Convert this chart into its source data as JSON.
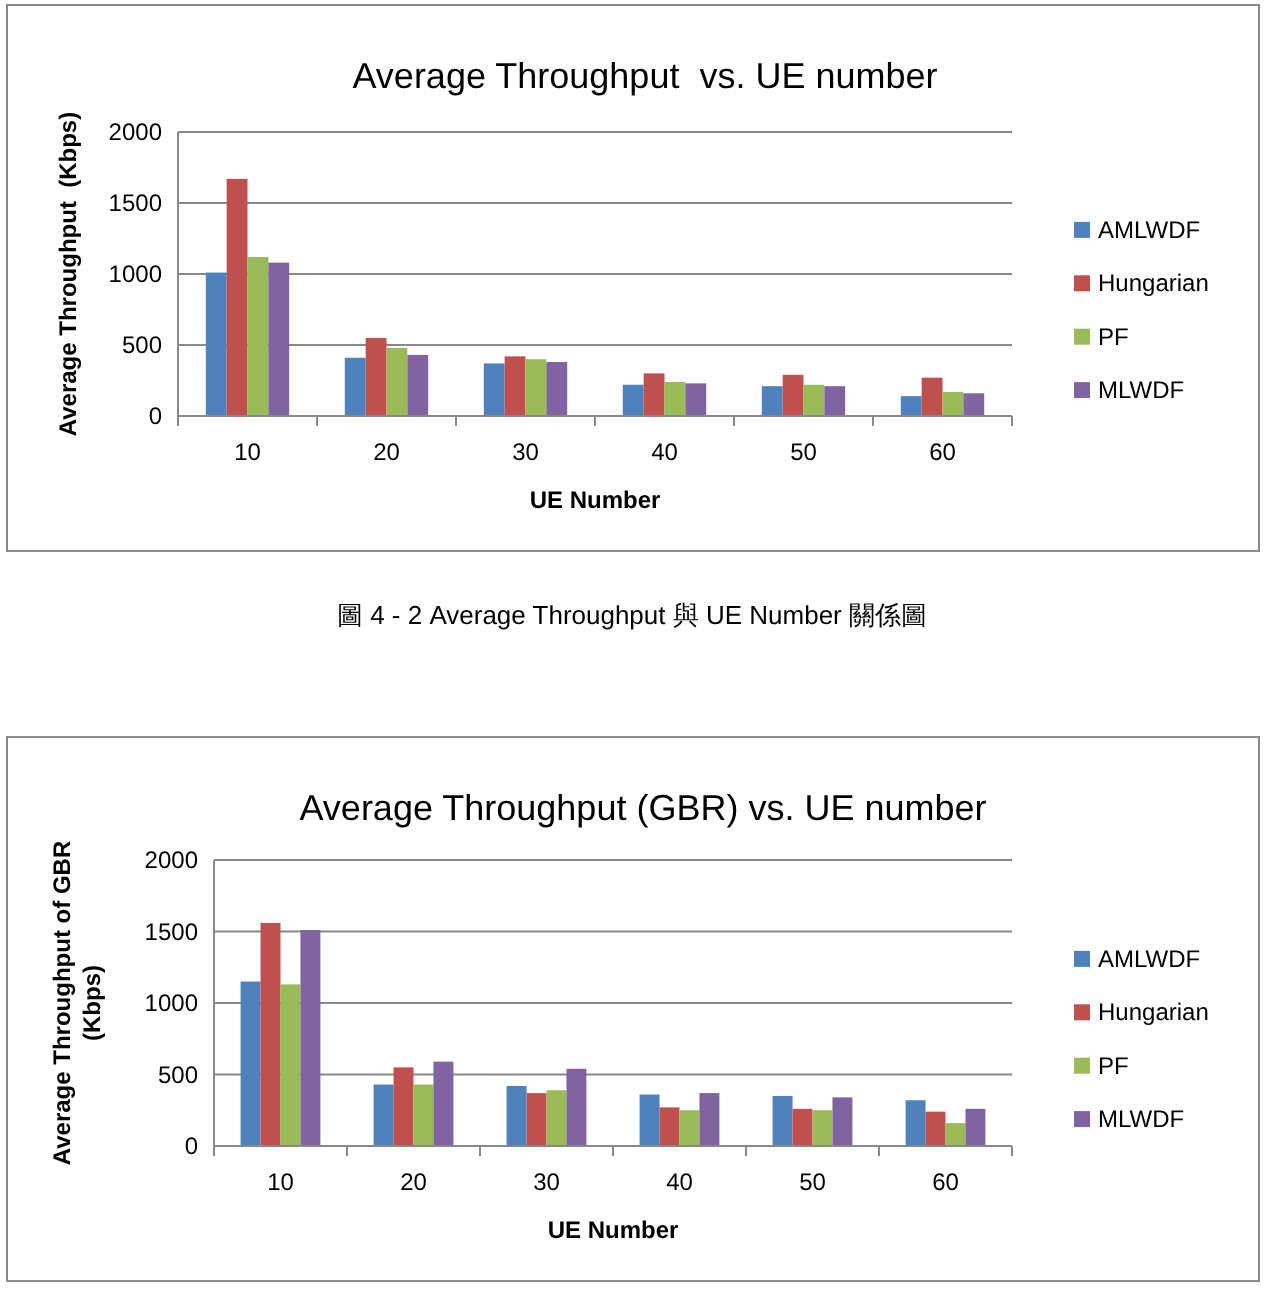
{
  "chart_data": [
    {
      "type": "bar",
      "title": "Average Throughput  vs. UE number",
      "xlabel": "UE Number",
      "ylabel": "Average Throughput  (Kbps)",
      "categories": [
        "10",
        "20",
        "30",
        "40",
        "50",
        "60"
      ],
      "series": [
        {
          "name": "AMLWDF",
          "color": "#4f81bd",
          "values": [
            1010,
            410,
            370,
            220,
            210,
            140
          ]
        },
        {
          "name": "Hungarian",
          "color": "#c0504d",
          "values": [
            1670,
            550,
            420,
            300,
            290,
            270
          ]
        },
        {
          "name": "PF",
          "color": "#9bbb59",
          "values": [
            1120,
            480,
            400,
            240,
            220,
            170
          ]
        },
        {
          "name": "MLWDF",
          "color": "#8064a2",
          "values": [
            1080,
            430,
            380,
            230,
            210,
            160
          ]
        }
      ],
      "ylim": [
        0,
        2000
      ],
      "yticks": [
        0,
        500,
        1000,
        1500,
        2000
      ],
      "grid": "y",
      "legend": "right",
      "annotations": [
        "圖 4 - 2 Average Throughput 與 UE Number 關係圖"
      ]
    },
    {
      "type": "bar",
      "title": "Average Throughput (GBR) vs. UE number",
      "xlabel": "UE Number",
      "ylabel": "Average Throughput of GBR (Kbps)",
      "categories": [
        "10",
        "20",
        "30",
        "40",
        "50",
        "60"
      ],
      "series": [
        {
          "name": "AMLWDF",
          "color": "#4f81bd",
          "values": [
            1150,
            430,
            420,
            360,
            350,
            320
          ]
        },
        {
          "name": "Hungarian",
          "color": "#c0504d",
          "values": [
            1560,
            550,
            370,
            270,
            260,
            240
          ]
        },
        {
          "name": "PF",
          "color": "#9bbb59",
          "values": [
            1130,
            430,
            390,
            250,
            250,
            160
          ]
        },
        {
          "name": "MLWDF",
          "color": "#8064a2",
          "values": [
            1510,
            590,
            540,
            370,
            340,
            260
          ]
        }
      ],
      "ylim": [
        0,
        2000
      ],
      "yticks": [
        0,
        500,
        1000,
        1500,
        2000
      ],
      "grid": "y",
      "legend": "right"
    }
  ]
}
